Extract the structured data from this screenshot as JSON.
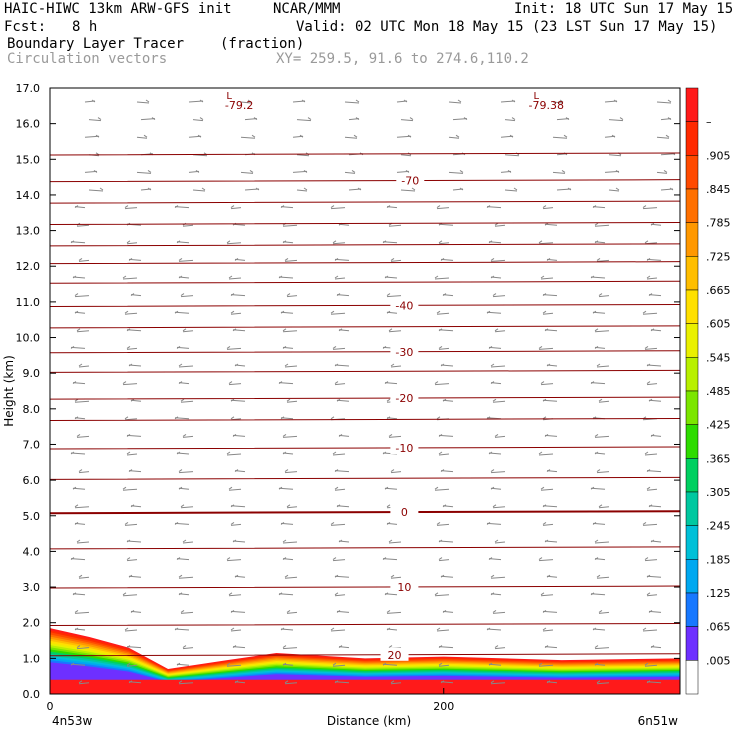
{
  "header": {
    "model": "HAIC-HIWC 13km ARW-GFS init",
    "org": "NCAR/MMM",
    "init": "Init: 18 UTC Sun 17 May 15",
    "fcst_label": "Fcst:",
    "fcst_value": "8 h",
    "valid": "Valid: 02 UTC Mon 18 May 15 (23 LST Sun 17 May 15)",
    "field": "Boundary Layer Tracer",
    "field_units": "(fraction)",
    "vectors_label": "Circulation vectors",
    "xy_range": "XY= 259.5, 91.6 to 274.6,110.2"
  },
  "chart_data": {
    "type": "heatmap",
    "xlabel": "Distance (km)",
    "ylabel": "Height (km)",
    "x_range": [
      0,
      320
    ],
    "ylim": [
      0.0,
      17.0
    ],
    "y_ticks": [
      "0.0",
      "1.0",
      "2.0",
      "3.0",
      "4.0",
      "5.0",
      "6.0",
      "7.0",
      "8.0",
      "9.0",
      "10.0",
      "11.0",
      "12.0",
      "13.0",
      "14.0",
      "15.0",
      "16.0",
      "17.0"
    ],
    "x_tick_values": [
      0,
      200
    ],
    "x_tick_labels": [
      "0",
      "200"
    ],
    "x_endpoint_labels": [
      "4n53w",
      "6n51w"
    ],
    "contour_field": "temperature (C)",
    "contour_lines": [
      {
        "value": 20,
        "height_km": 1.1,
        "label": "20",
        "label_x": 175
      },
      {
        "value": 10,
        "height_km": 3.0,
        "label": "10",
        "label_x": 180
      },
      {
        "value": 0,
        "height_km": 5.1,
        "label": "0",
        "label_x": 180
      },
      {
        "value": -10,
        "height_km": 6.9,
        "label": "-10",
        "label_x": 180
      },
      {
        "value": -20,
        "height_km": 8.3,
        "label": "-20",
        "label_x": 180
      },
      {
        "value": -30,
        "height_km": 9.6,
        "label": "-30",
        "label_x": 180
      },
      {
        "value": -40,
        "height_km": 10.9,
        "label": "-40",
        "label_x": 180
      },
      {
        "value": -70,
        "height_km": 14.4,
        "label": "-70",
        "label_x": 183
      }
    ],
    "extra_contour_heights_km": [
      1.95,
      4.1,
      6.05,
      7.7,
      9.05,
      10.3,
      11.55,
      12.1,
      12.6,
      13.2,
      13.8,
      15.15
    ],
    "low_markers": [
      {
        "label": "L",
        "value": "-79.2",
        "x_km": 92
      },
      {
        "label": "L",
        "value": "-79.38",
        "x_km": 248
      }
    ],
    "colorbar": {
      "levels": [
        "–",
        ".905",
        ".845",
        ".785",
        ".725",
        ".665",
        ".605",
        ".545",
        ".485",
        ".425",
        ".365",
        ".305",
        ".245",
        ".185",
        ".125",
        ".065",
        ".005"
      ],
      "colors": [
        "#ff1a1a",
        "#ff2a00",
        "#ff4a00",
        "#ff7000",
        "#ff9800",
        "#ffbe00",
        "#ffe000",
        "#eaf000",
        "#b8f000",
        "#7ce600",
        "#2edc00",
        "#00d060",
        "#00c8a0",
        "#00c0d8",
        "#00a8f0",
        "#1878ff",
        "#6e30ff",
        "#ffffff"
      ]
    },
    "tracer_layer": [
      {
        "x_km": 0,
        "top_km": 1.85
      },
      {
        "x_km": 20,
        "top_km": 1.6
      },
      {
        "x_km": 40,
        "top_km": 1.3
      },
      {
        "x_km": 60,
        "top_km": 0.7
      },
      {
        "x_km": 90,
        "top_km": 0.95
      },
      {
        "x_km": 115,
        "top_km": 1.15
      },
      {
        "x_km": 160,
        "top_km": 1.0
      },
      {
        "x_km": 200,
        "top_km": 1.05
      },
      {
        "x_km": 260,
        "top_km": 0.95
      },
      {
        "x_km": 320,
        "top_km": 1.0
      }
    ],
    "grid": false,
    "colors": {
      "contour": "#8b0000",
      "vectors": "#888888",
      "axis": "#000000"
    }
  }
}
